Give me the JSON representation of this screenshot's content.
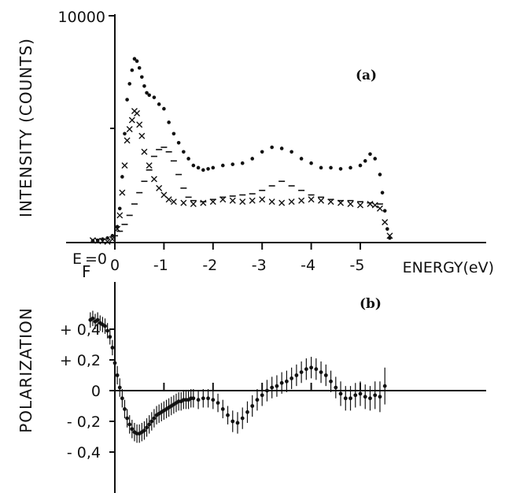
{
  "chart_data": [
    {
      "panel": "(a)",
      "type": "scatter",
      "ylabel": "INTENSITY (COUNTS)",
      "xlabel": "ENERGY(eV)",
      "x_origin_label_prefix": "E",
      "x_origin_label_sub": "F",
      "x_origin_label_suffix": "=0",
      "x_axis_reversed": true,
      "xlim": [
        0.55,
        -5.7
      ],
      "ylim": [
        0,
        10000
      ],
      "ytick_labels": [
        {
          "value": 10000,
          "label": "10000"
        }
      ],
      "yticks_unlabeled": [
        5000
      ],
      "xticks": [
        {
          "value": 0,
          "label": "0"
        },
        {
          "value": -1,
          "label": "-1"
        },
        {
          "value": -2,
          "label": "-2"
        },
        {
          "value": -3,
          "label": "-3"
        },
        {
          "value": -4,
          "label": "-4"
        },
        {
          "value": -5,
          "label": "-5"
        }
      ],
      "series": [
        {
          "marker": "dot",
          "x": [
            0.45,
            0.35,
            0.25,
            0.15,
            0.05,
            -0.05,
            -0.1,
            -0.15,
            -0.2,
            -0.25,
            -0.3,
            -0.35,
            -0.4,
            -0.45,
            -0.5,
            -0.55,
            -0.6,
            -0.65,
            -0.7,
            -0.8,
            -0.9,
            -1.0,
            -1.1,
            -1.2,
            -1.3,
            -1.4,
            -1.5,
            -1.6,
            -1.7,
            -1.8,
            -1.9,
            -2.0,
            -2.2,
            -2.4,
            -2.6,
            -2.8,
            -3.0,
            -3.2,
            -3.4,
            -3.6,
            -3.8,
            -4.0,
            -4.2,
            -4.4,
            -4.6,
            -4.8,
            -5.0,
            -5.1,
            -5.2,
            -5.3,
            -5.4,
            -5.45,
            -5.5,
            -5.55,
            -5.6
          ],
          "y": [
            80,
            100,
            150,
            200,
            300,
            700,
            1500,
            2900,
            4800,
            6300,
            7000,
            7600,
            8100,
            8000,
            7700,
            7300,
            6900,
            6600,
            6500,
            6400,
            6100,
            5900,
            5300,
            4800,
            4400,
            4000,
            3700,
            3400,
            3300,
            3200,
            3250,
            3300,
            3400,
            3450,
            3500,
            3700,
            4000,
            4200,
            4150,
            4000,
            3700,
            3500,
            3300,
            3300,
            3250,
            3300,
            3400,
            3600,
            3900,
            3700,
            3000,
            2200,
            1400,
            600,
            200
          ]
        },
        {
          "marker": "cross",
          "x": [
            0.45,
            0.35,
            0.25,
            0.15,
            0.05,
            -0.05,
            -0.1,
            -0.15,
            -0.2,
            -0.25,
            -0.3,
            -0.35,
            -0.4,
            -0.45,
            -0.5,
            -0.55,
            -0.6,
            -0.7,
            -0.8,
            -0.9,
            -1.0,
            -1.1,
            -1.2,
            -1.4,
            -1.6,
            -1.8,
            -2.0,
            -2.2,
            -2.4,
            -2.6,
            -2.8,
            -3.0,
            -3.2,
            -3.4,
            -3.6,
            -3.8,
            -4.0,
            -4.2,
            -4.4,
            -4.6,
            -4.8,
            -5.0,
            -5.2,
            -5.3,
            -5.4,
            -5.5,
            -5.6
          ],
          "y": [
            100,
            80,
            60,
            40,
            150,
            600,
            1200,
            2200,
            3400,
            4500,
            5000,
            5400,
            5800,
            5700,
            5200,
            4700,
            4000,
            3400,
            2800,
            2400,
            2100,
            1900,
            1800,
            1750,
            1700,
            1750,
            1800,
            1900,
            1850,
            1800,
            1850,
            1900,
            1800,
            1750,
            1800,
            1850,
            1900,
            1850,
            1800,
            1750,
            1700,
            1650,
            1700,
            1650,
            1500,
            900,
            300
          ]
        },
        {
          "marker": "dash",
          "x": [
            0.0,
            -0.1,
            -0.2,
            -0.3,
            -0.4,
            -0.5,
            -0.6,
            -0.7,
            -0.8,
            -0.9,
            -1.0,
            -1.1,
            -1.2,
            -1.3,
            -1.4,
            -1.5,
            -1.6,
            -1.8,
            -2.0,
            -2.2,
            -2.4,
            -2.6,
            -2.8,
            -3.0,
            -3.2,
            -3.4,
            -3.6,
            -3.8,
            -4.0,
            -4.2,
            -4.4,
            -4.6,
            -4.8,
            -5.0,
            -5.2,
            -5.4
          ],
          "y": [
            300,
            500,
            800,
            1200,
            1700,
            2200,
            2700,
            3200,
            3800,
            4100,
            4200,
            4000,
            3600,
            3000,
            2400,
            2000,
            1850,
            1800,
            1900,
            2000,
            2050,
            2100,
            2150,
            2300,
            2500,
            2700,
            2500,
            2300,
            2100,
            2000,
            1900,
            1850,
            1850,
            1800,
            1750,
            1700
          ]
        }
      ]
    },
    {
      "panel": "(b)",
      "type": "scatter",
      "ylabel": "POLARIZATION",
      "ylim": [
        -0.5,
        0.55
      ],
      "yticks": [
        {
          "value": 0.4,
          "label": "+ 0,4"
        },
        {
          "value": 0.2,
          "label": "+ 0,2"
        },
        {
          "value": 0,
          "label": "0"
        },
        {
          "value": -0.2,
          "label": "- 0,2"
        },
        {
          "value": -0.4,
          "label": "- 0,4"
        }
      ],
      "xlim": [
        0.55,
        -5.7
      ],
      "zero_line": true,
      "series": [
        {
          "marker": "dot_errorbar",
          "x": [
            0.5,
            0.45,
            0.4,
            0.35,
            0.3,
            0.25,
            0.2,
            0.15,
            0.1,
            0.05,
            0.0,
            -0.05,
            -0.1,
            -0.15,
            -0.2,
            -0.25,
            -0.3,
            -0.35,
            -0.4,
            -0.45,
            -0.5,
            -0.55,
            -0.6,
            -0.65,
            -0.7,
            -0.75,
            -0.8,
            -0.85,
            -0.9,
            -0.95,
            -1.0,
            -1.05,
            -1.1,
            -1.15,
            -1.2,
            -1.25,
            -1.3,
            -1.35,
            -1.4,
            -1.45,
            -1.5,
            -1.55,
            -1.6,
            -1.7,
            -1.8,
            -1.9,
            -2.0,
            -2.1,
            -2.2,
            -2.3,
            -2.4,
            -2.5,
            -2.6,
            -2.7,
            -2.8,
            -2.9,
            -3.0,
            -3.1,
            -3.2,
            -3.3,
            -3.4,
            -3.5,
            -3.6,
            -3.7,
            -3.8,
            -3.9,
            -4.0,
            -4.1,
            -4.2,
            -4.3,
            -4.4,
            -4.5,
            -4.6,
            -4.7,
            -4.8,
            -4.9,
            -5.0,
            -5.1,
            -5.2,
            -5.3,
            -5.4,
            -5.5
          ],
          "y": [
            0.46,
            0.47,
            0.45,
            0.46,
            0.44,
            0.43,
            0.42,
            0.39,
            0.35,
            0.28,
            0.18,
            0.1,
            0.02,
            -0.05,
            -0.12,
            -0.18,
            -0.22,
            -0.25,
            -0.27,
            -0.28,
            -0.28,
            -0.27,
            -0.26,
            -0.24,
            -0.22,
            -0.2,
            -0.18,
            -0.16,
            -0.15,
            -0.14,
            -0.13,
            -0.12,
            -0.11,
            -0.1,
            -0.09,
            -0.08,
            -0.07,
            -0.07,
            -0.06,
            -0.06,
            -0.06,
            -0.05,
            -0.05,
            -0.06,
            -0.05,
            -0.05,
            -0.06,
            -0.08,
            -0.12,
            -0.16,
            -0.2,
            -0.21,
            -0.18,
            -0.14,
            -0.1,
            -0.06,
            -0.03,
            0.0,
            0.02,
            0.03,
            0.05,
            0.06,
            0.08,
            0.1,
            0.12,
            0.14,
            0.15,
            0.14,
            0.12,
            0.1,
            0.06,
            0.02,
            -0.02,
            -0.05,
            -0.05,
            -0.03,
            -0.02,
            -0.04,
            -0.05,
            -0.03,
            -0.04,
            0.03
          ],
          "err": [
            0.05,
            0.05,
            0.05,
            0.05,
            0.05,
            0.05,
            0.05,
            0.05,
            0.05,
            0.05,
            0.06,
            0.06,
            0.06,
            0.06,
            0.06,
            0.06,
            0.06,
            0.06,
            0.06,
            0.06,
            0.06,
            0.06,
            0.06,
            0.06,
            0.06,
            0.06,
            0.06,
            0.06,
            0.06,
            0.06,
            0.06,
            0.06,
            0.06,
            0.06,
            0.06,
            0.06,
            0.06,
            0.06,
            0.06,
            0.06,
            0.06,
            0.06,
            0.06,
            0.06,
            0.06,
            0.06,
            0.06,
            0.06,
            0.06,
            0.06,
            0.07,
            0.07,
            0.07,
            0.07,
            0.07,
            0.07,
            0.07,
            0.07,
            0.07,
            0.07,
            0.07,
            0.07,
            0.07,
            0.07,
            0.07,
            0.07,
            0.07,
            0.07,
            0.07,
            0.07,
            0.07,
            0.07,
            0.08,
            0.08,
            0.08,
            0.08,
            0.08,
            0.08,
            0.08,
            0.09,
            0.1,
            0.12
          ]
        }
      ]
    }
  ],
  "tags": {
    "a": "(a)",
    "b": "(b)"
  }
}
